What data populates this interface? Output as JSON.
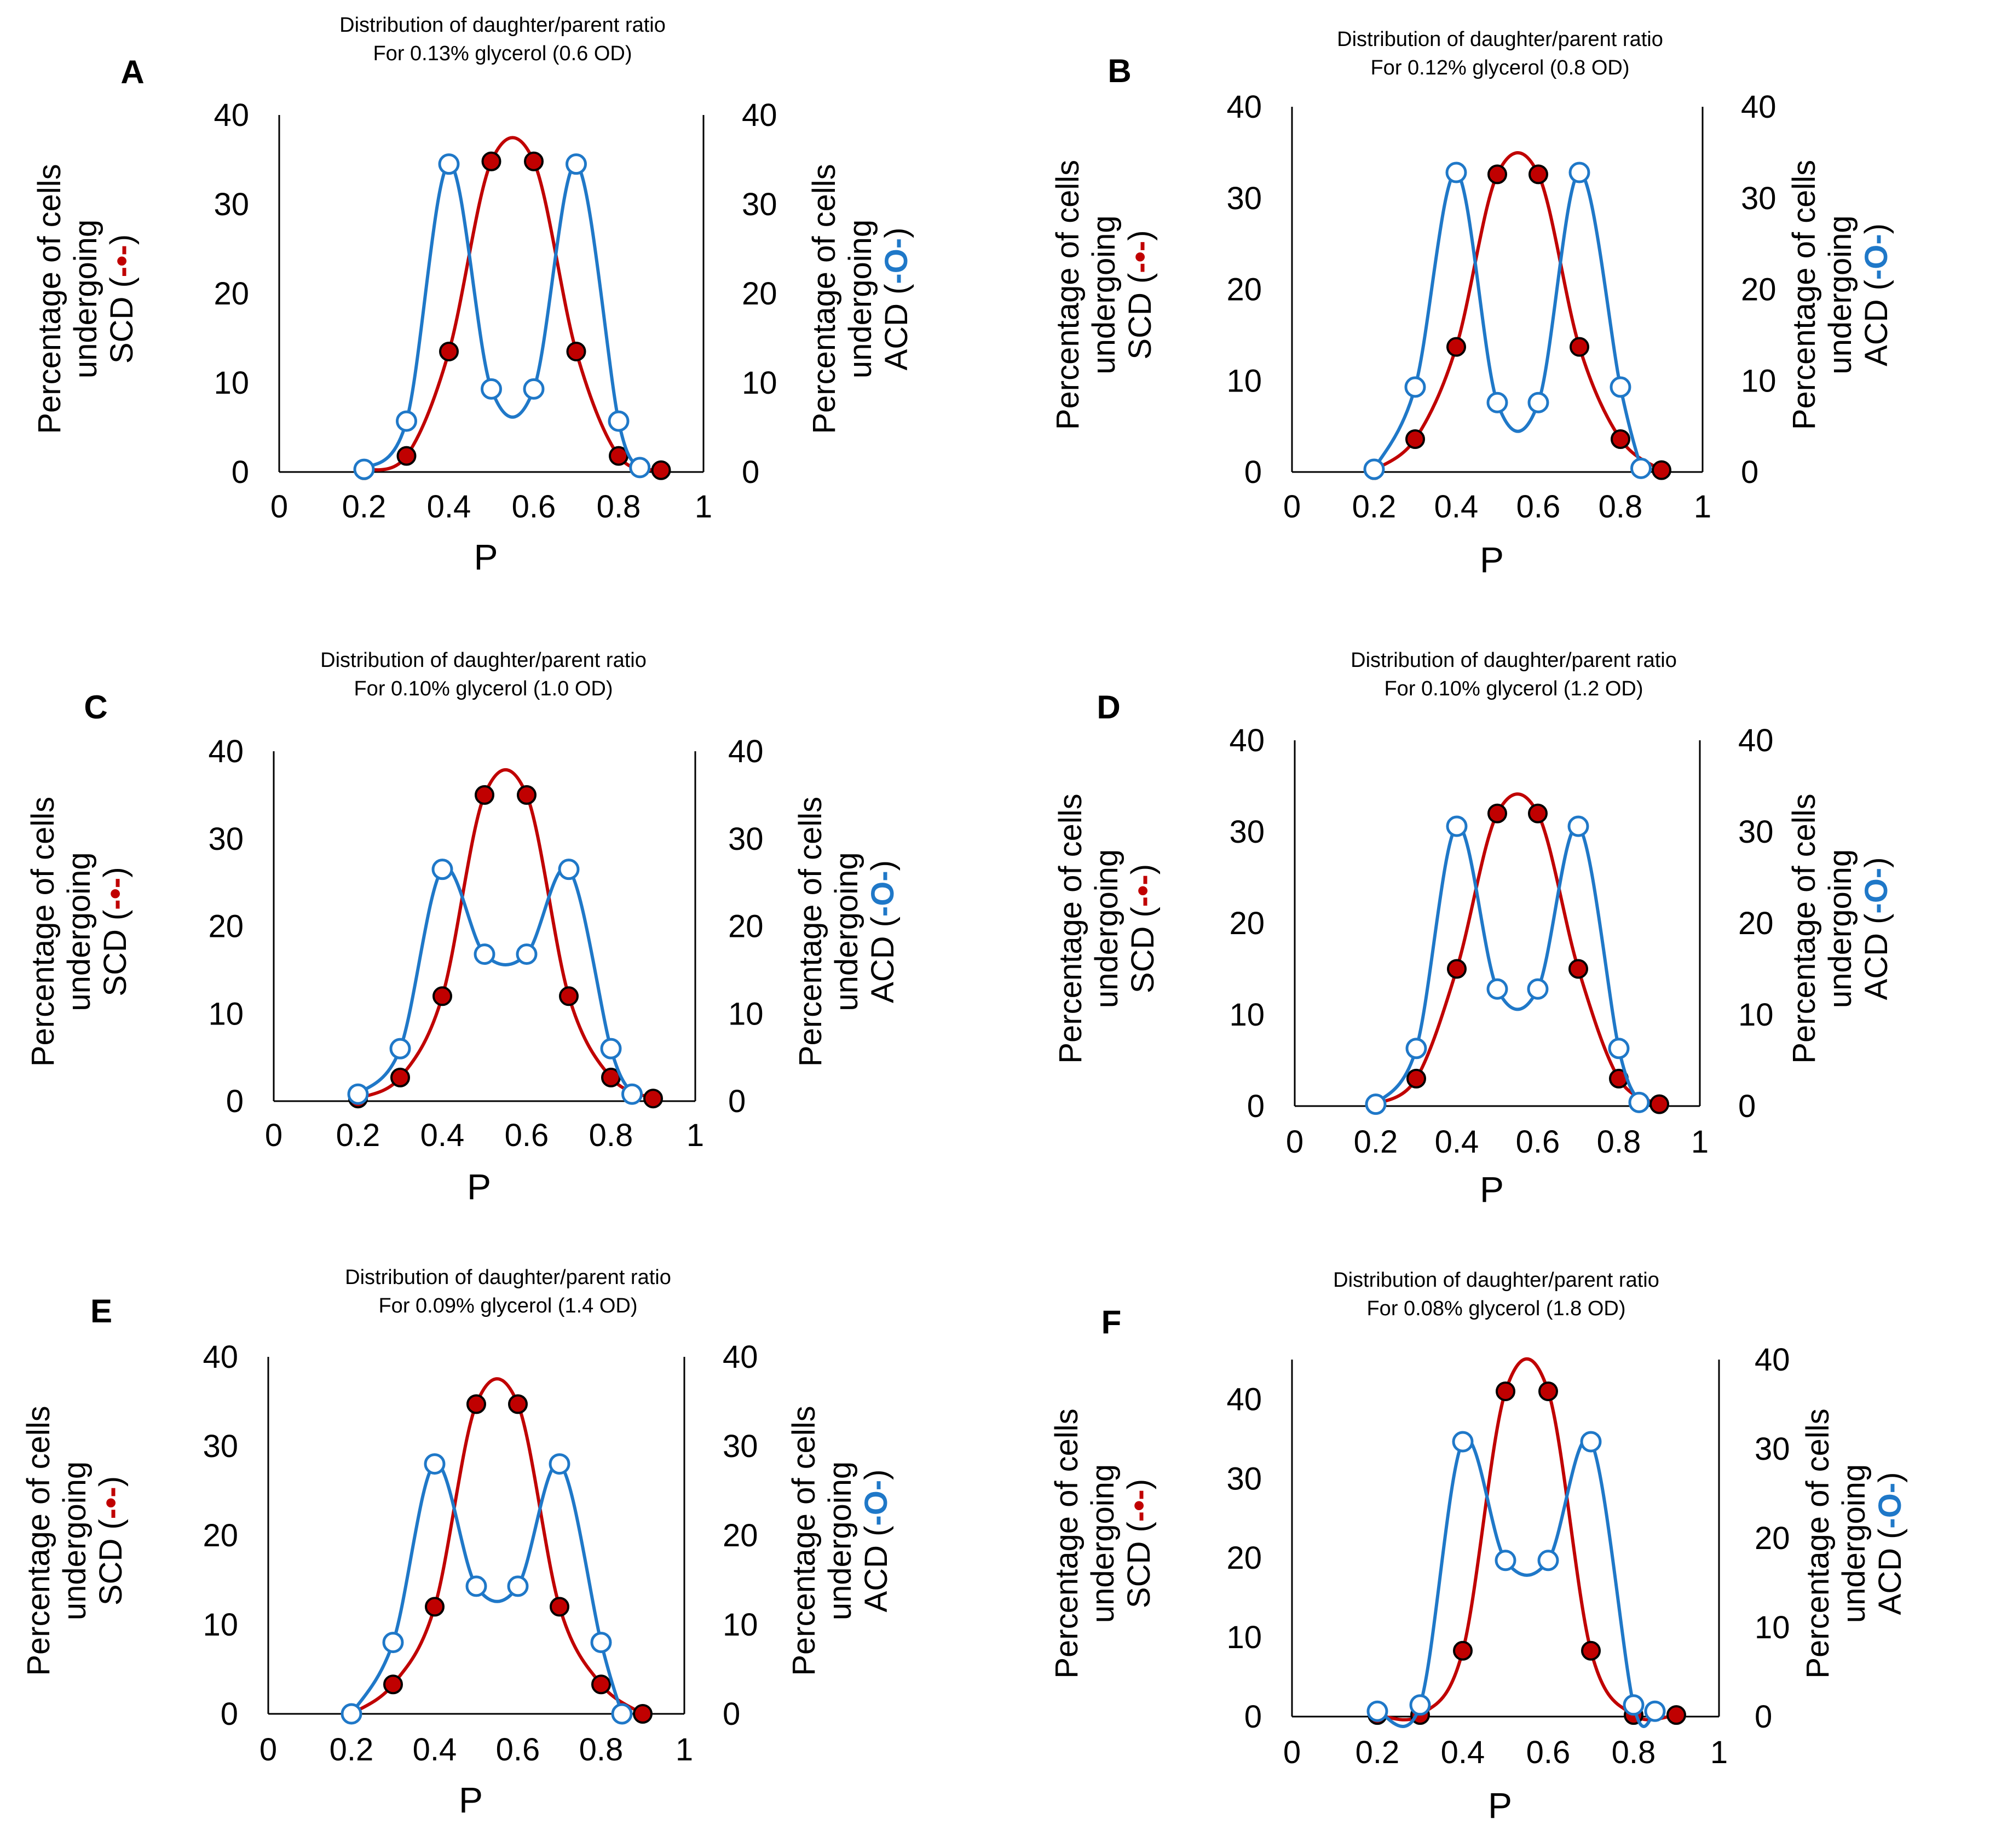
{
  "colors": {
    "scd": "#c00000",
    "acd": "#1f78c8",
    "axis": "#000000"
  },
  "chart_data": [
    {
      "panel": "A",
      "type": "scatter",
      "title": [
        "Distribution of daughter/parent ratio",
        "For 0.13% glycerol (0.6 OD)"
      ],
      "xlabel": "P",
      "ylabel_left": [
        "Percentage of cells",
        "undergoing",
        "SCD (",
        "-•-",
        ")"
      ],
      "ylabel_right": [
        "Percentage of cells",
        "undergoing",
        "ACD (",
        "-O-",
        ")"
      ],
      "xlim": [
        0,
        1
      ],
      "ylim_left": [
        0,
        40
      ],
      "ylim_right": [
        0,
        40
      ],
      "xticks": [
        "0",
        "0.2",
        "0.4",
        "0.6",
        "0.8",
        "1"
      ],
      "yticks_left": [
        "0",
        "10",
        "20",
        "30",
        "40"
      ],
      "yticks_right": [
        "0",
        "10",
        "20",
        "30",
        "40"
      ],
      "series": [
        {
          "name": "SCD",
          "marker": "filled",
          "x": [
            0.2,
            0.3,
            0.4,
            0.5,
            0.6,
            0.7,
            0.8,
            0.9
          ],
          "y": [
            0.2,
            1.8,
            13.5,
            34.8,
            34.8,
            13.5,
            1.8,
            0.2
          ]
        },
        {
          "name": "ACD",
          "marker": "open",
          "x": [
            0.2,
            0.3,
            0.4,
            0.5,
            0.6,
            0.7,
            0.8,
            0.85
          ],
          "y": [
            0.3,
            5.7,
            34.5,
            9.3,
            9.3,
            34.5,
            5.7,
            0.5
          ]
        }
      ]
    },
    {
      "panel": "B",
      "type": "scatter",
      "title": [
        "Distribution of daughter/parent ratio",
        "For 0.12% glycerol (0.8 OD)"
      ],
      "xlabel": "P",
      "ylabel_left": [
        "Percentage of cells",
        "undergoing",
        "SCD (",
        "-•-",
        ")"
      ],
      "ylabel_right": [
        "Percentage of cells",
        "undergoing",
        "ACD (",
        "-O-",
        ")"
      ],
      "xlim": [
        0,
        1
      ],
      "ylim_left": [
        0,
        40
      ],
      "ylim_right": [
        0,
        40
      ],
      "xticks": [
        "0",
        "0.2",
        "0.4",
        "0.6",
        "0.8",
        "1"
      ],
      "yticks_left": [
        "0",
        "10",
        "20",
        "30",
        "40"
      ],
      "yticks_right": [
        "0",
        "10",
        "20",
        "30",
        "40"
      ],
      "series": [
        {
          "name": "SCD",
          "marker": "filled",
          "x": [
            0.2,
            0.3,
            0.4,
            0.5,
            0.6,
            0.7,
            0.8,
            0.9
          ],
          "y": [
            0.2,
            3.6,
            13.7,
            32.6,
            32.6,
            13.7,
            3.6,
            0.2
          ]
        },
        {
          "name": "ACD",
          "marker": "open",
          "x": [
            0.2,
            0.3,
            0.4,
            0.5,
            0.6,
            0.7,
            0.8,
            0.85
          ],
          "y": [
            0.3,
            9.3,
            32.8,
            7.6,
            7.6,
            32.8,
            9.3,
            0.4
          ]
        }
      ]
    },
    {
      "panel": "C",
      "type": "scatter",
      "title": [
        "Distribution of daughter/parent ratio",
        "For 0.10% glycerol (1.0 OD)"
      ],
      "xlabel": "P",
      "ylabel_left": [
        "Percentage of cells",
        "undergoing",
        "SCD (",
        "-•-",
        ")"
      ],
      "ylabel_right": [
        "Percentage of cells",
        "undergoing",
        "ACD (",
        "-O-",
        ")"
      ],
      "xlim": [
        0,
        1
      ],
      "ylim_left": [
        0,
        40
      ],
      "ylim_right": [
        0,
        40
      ],
      "xticks": [
        "0",
        "0.2",
        "0.4",
        "0.6",
        "0.8",
        "1"
      ],
      "yticks_left": [
        "0",
        "10",
        "20",
        "30",
        "40"
      ],
      "yticks_right": [
        "0",
        "10",
        "20",
        "30",
        "40"
      ],
      "series": [
        {
          "name": "SCD",
          "marker": "filled",
          "x": [
            0.2,
            0.3,
            0.4,
            0.5,
            0.6,
            0.7,
            0.8,
            0.9
          ],
          "y": [
            0.3,
            2.7,
            12.0,
            35.0,
            35.0,
            12.0,
            2.7,
            0.3
          ]
        },
        {
          "name": "ACD",
          "marker": "open",
          "x": [
            0.2,
            0.3,
            0.4,
            0.5,
            0.6,
            0.7,
            0.8,
            0.85
          ],
          "y": [
            0.8,
            6.0,
            26.5,
            16.8,
            16.8,
            26.5,
            6.0,
            0.8
          ]
        }
      ]
    },
    {
      "panel": "D",
      "type": "scatter",
      "title": [
        "Distribution of daughter/parent ratio",
        "For 0.10% glycerol (1.2 OD)"
      ],
      "xlabel": "P",
      "ylabel_left": [
        "Percentage of cells",
        "undergoing",
        "SCD (",
        "-•-",
        ")"
      ],
      "ylabel_right": [
        "Percentage of cells",
        "undergoing",
        "ACD (",
        "-O-",
        ")"
      ],
      "xlim": [
        0,
        1
      ],
      "ylim_left": [
        0,
        40
      ],
      "ylim_right": [
        0,
        40
      ],
      "xticks": [
        "0",
        "0.2",
        "0.4",
        "0.6",
        "0.8",
        "1"
      ],
      "yticks_left": [
        "0",
        "10",
        "20",
        "30",
        "40"
      ],
      "yticks_right": [
        "0",
        "10",
        "20",
        "30",
        "40"
      ],
      "series": [
        {
          "name": "SCD",
          "marker": "filled",
          "x": [
            0.2,
            0.3,
            0.4,
            0.5,
            0.6,
            0.7,
            0.8,
            0.9
          ],
          "y": [
            0.2,
            3.0,
            15.0,
            32.0,
            32.0,
            15.0,
            3.0,
            0.2
          ]
        },
        {
          "name": "ACD",
          "marker": "open",
          "x": [
            0.2,
            0.3,
            0.4,
            0.5,
            0.6,
            0.7,
            0.8,
            0.85
          ],
          "y": [
            0.2,
            6.3,
            30.6,
            12.8,
            12.8,
            30.6,
            6.3,
            0.4
          ]
        }
      ]
    },
    {
      "panel": "E",
      "type": "scatter",
      "title": [
        "Distribution of daughter/parent ratio",
        "For 0.09% glycerol (1.4 OD)"
      ],
      "xlabel": "P",
      "ylabel_left": [
        "Percentage of cells",
        "undergoing",
        "SCD (",
        "-•-",
        ")"
      ],
      "ylabel_right": [
        "Percentage of cells",
        "undergoing",
        "ACD (",
        "-O-",
        ")"
      ],
      "xlim": [
        0,
        1
      ],
      "ylim_left": [
        0,
        40
      ],
      "ylim_right": [
        0,
        40
      ],
      "xticks": [
        "0",
        "0.2",
        "0.4",
        "0.6",
        "0.8",
        "1"
      ],
      "yticks_left": [
        "0",
        "10",
        "20",
        "30",
        "40"
      ],
      "yticks_right": [
        "0",
        "10",
        "20",
        "30",
        "40"
      ],
      "series": [
        {
          "name": "SCD",
          "marker": "filled",
          "x": [
            0.2,
            0.3,
            0.4,
            0.5,
            0.6,
            0.7,
            0.8,
            0.9
          ],
          "y": [
            0.0,
            3.3,
            12.0,
            34.7,
            34.7,
            12.0,
            3.3,
            0.0
          ]
        },
        {
          "name": "ACD",
          "marker": "open",
          "x": [
            0.2,
            0.3,
            0.4,
            0.5,
            0.6,
            0.7,
            0.8,
            0.85
          ],
          "y": [
            0.0,
            8.0,
            28.0,
            14.3,
            14.3,
            28.0,
            8.0,
            0.0
          ]
        }
      ]
    },
    {
      "panel": "F",
      "type": "scatter",
      "title": [
        "Distribution of daughter/parent ratio",
        "For 0.08% glycerol (1.8 OD)"
      ],
      "xlabel": "P",
      "ylabel_left": [
        "Percentage of cells",
        "undergoing",
        "SCD (",
        "-•-",
        ")"
      ],
      "ylabel_right": [
        "Percentage of cells",
        "undergoing",
        "ACD (",
        "-O-",
        ")"
      ],
      "xlim": [
        0,
        1
      ],
      "ylim_left": [
        0,
        45
      ],
      "ylim_right": [
        0,
        40
      ],
      "xticks": [
        "0",
        "0.2",
        "0.4",
        "0.6",
        "0.8",
        "1"
      ],
      "yticks_left": [
        "0",
        "10",
        "20",
        "30",
        "40"
      ],
      "yticks_right": [
        "0",
        "10",
        "20",
        "30",
        "40"
      ],
      "series": [
        {
          "name": "SCD",
          "marker": "filled",
          "x": [
            0.2,
            0.3,
            0.4,
            0.5,
            0.6,
            0.7,
            0.8,
            0.9
          ],
          "y": [
            0.2,
            0.2,
            8.3,
            41.0,
            41.0,
            8.3,
            0.2,
            0.2
          ]
        },
        {
          "name": "ACD",
          "marker": "open",
          "x": [
            0.2,
            0.3,
            0.4,
            0.5,
            0.6,
            0.7,
            0.8,
            0.85
          ],
          "y": [
            0.6,
            1.3,
            30.8,
            17.5,
            17.5,
            30.8,
            1.3,
            0.6
          ]
        }
      ]
    }
  ]
}
